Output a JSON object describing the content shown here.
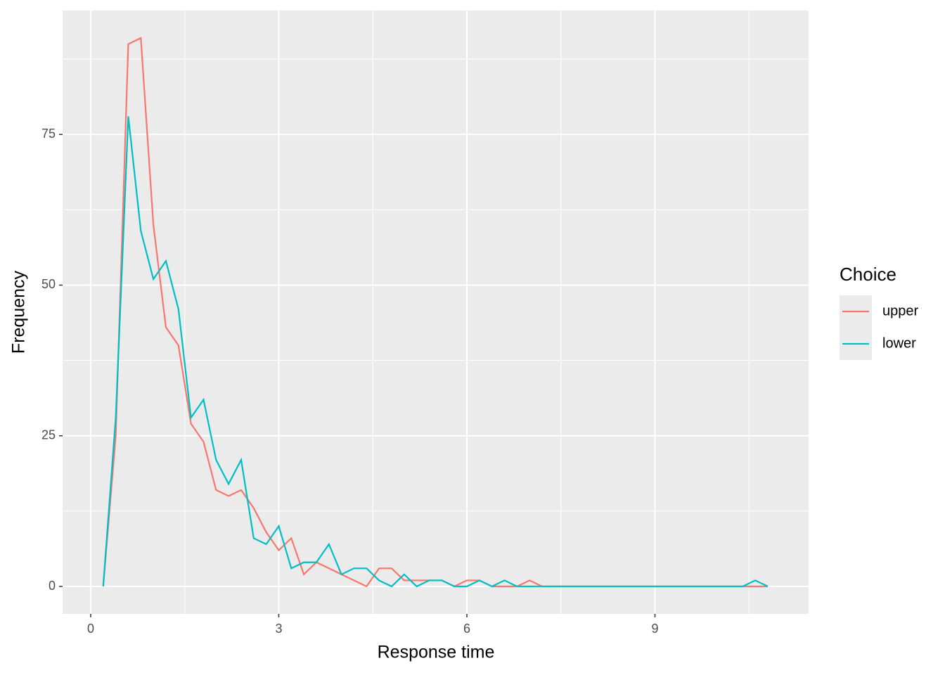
{
  "chart_data": {
    "type": "line",
    "x_label": "Response time",
    "y_label": "Frequency",
    "legend_title": "Choice",
    "x": [
      0.2,
      0.4,
      0.6,
      0.8,
      1,
      1.2,
      1.4,
      1.6,
      1.8,
      2,
      2.2,
      2.4,
      2.6,
      2.8,
      3,
      3.2,
      3.4,
      3.6,
      3.8,
      4,
      4.2,
      4.4,
      4.6,
      4.8,
      5,
      5.2,
      5.4,
      5.6,
      5.8,
      6,
      6.2,
      6.4,
      6.6,
      6.8,
      7,
      7.2,
      7.4,
      7.6,
      7.8,
      8,
      8.2,
      8.4,
      8.6,
      8.8,
      9,
      9.2,
      9.4,
      9.6,
      9.8,
      10,
      10.2,
      10.4,
      10.6,
      10.8
    ],
    "series": [
      {
        "name": "upper",
        "color": "#f8766d",
        "values": [
          0,
          25,
          90,
          91,
          60,
          43,
          40,
          27,
          24,
          16,
          15,
          16,
          13,
          9,
          6,
          8,
          2,
          4,
          3,
          2,
          1,
          0,
          3,
          3,
          1,
          1,
          1,
          1,
          0,
          1,
          1,
          0,
          0,
          0,
          1,
          0,
          0,
          0,
          0,
          0,
          0,
          0,
          0,
          0,
          0,
          0,
          0,
          0,
          0,
          0,
          0,
          0,
          0,
          0
        ]
      },
      {
        "name": "lower",
        "color": "#00bfc4",
        "values": [
          0,
          28,
          78,
          59,
          51,
          54,
          46,
          28,
          31,
          21,
          17,
          21,
          8,
          7,
          10,
          3,
          4,
          4,
          7,
          2,
          3,
          3,
          1,
          0,
          2,
          0,
          1,
          1,
          0,
          0,
          1,
          0,
          1,
          0,
          0,
          0,
          0,
          0,
          0,
          0,
          0,
          0,
          0,
          0,
          0,
          0,
          0,
          0,
          0,
          0,
          0,
          0,
          1,
          0
        ]
      }
    ],
    "xlim": [
      -0.448,
      11.45
    ],
    "ylim": [
      -4.55,
      95.56
    ],
    "xticks": [
      0,
      3,
      6,
      9
    ],
    "yticks": [
      0,
      25,
      50,
      75
    ],
    "grid": true
  }
}
